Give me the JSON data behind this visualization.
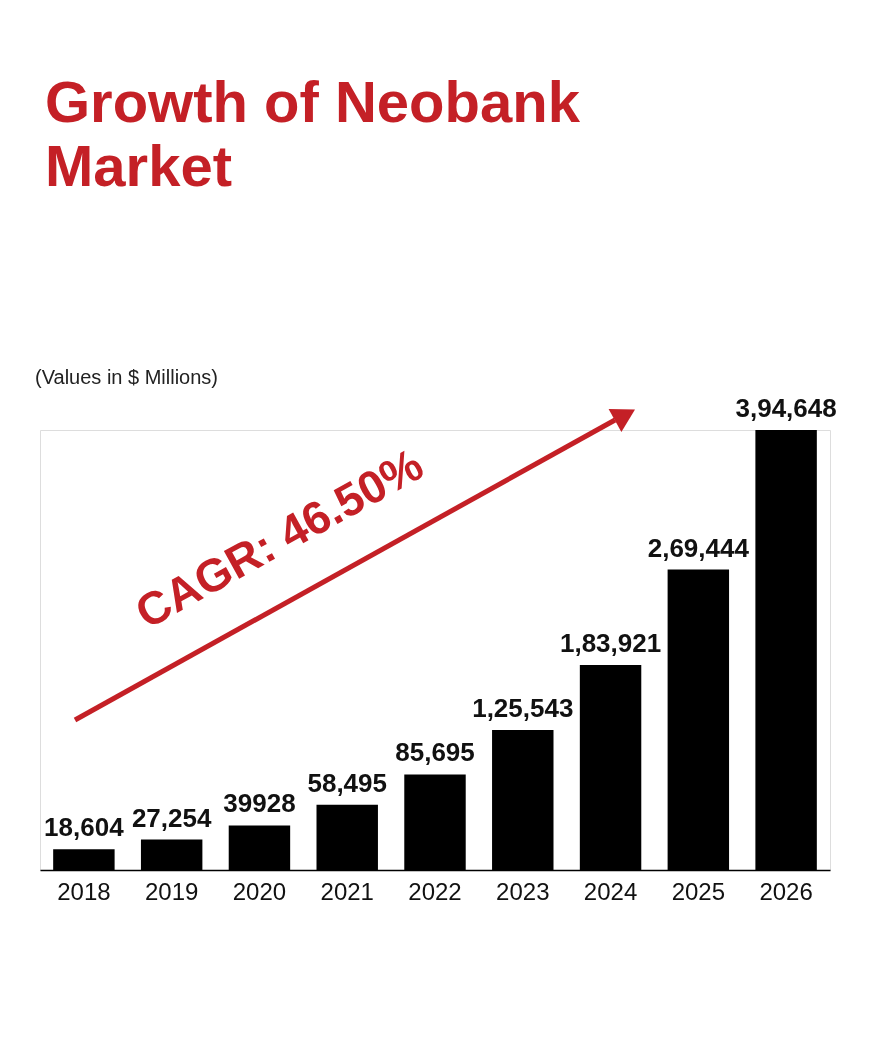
{
  "chart_data": {
    "type": "bar",
    "title": "Growth of Neobank Market",
    "subtitle": "(Values in $ Millions)",
    "categories": [
      "2018",
      "2019",
      "2020",
      "2021",
      "2022",
      "2023",
      "2024",
      "2025",
      "2026"
    ],
    "values": [
      18604,
      27254,
      39928,
      58495,
      85695,
      125543,
      183921,
      269444,
      394648
    ],
    "value_labels": [
      "18,604",
      "27,254",
      "39928",
      "58,495",
      "85,695",
      "1,25,543",
      "1,83,921",
      "2,69,444",
      "3,94,648"
    ],
    "color": "#000000",
    "annotations": [
      "CAGR: 46.50%"
    ],
    "tick_labels": "x",
    "grid": false
  }
}
